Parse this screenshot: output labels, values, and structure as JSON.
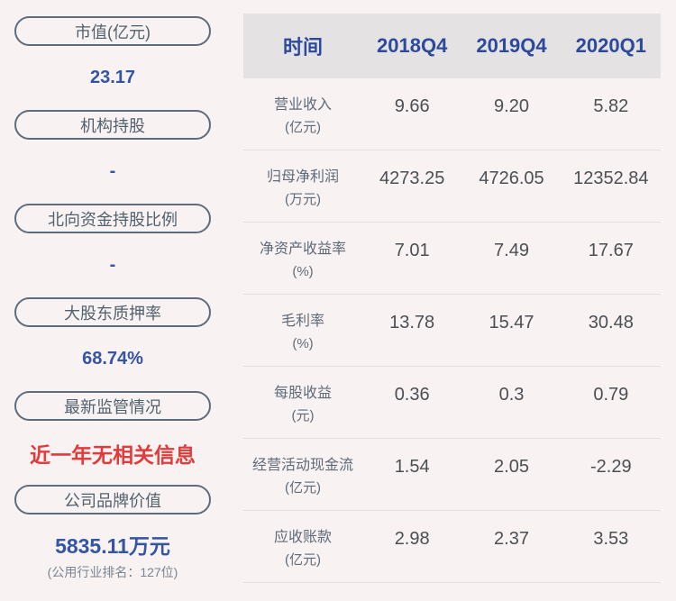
{
  "colors": {
    "page_background": "#f9f2f2",
    "accent_blue": "#3454a4",
    "header_navy": "#2c4a9c",
    "alert_red": "#e23b3b",
    "pill_border": "#5c6d7e",
    "header_background": "#e4e2e3"
  },
  "sidebar": {
    "items": [
      {
        "label": "市值(亿元)",
        "value": "23.17"
      },
      {
        "label": "机构持股",
        "value": "-"
      },
      {
        "label": "北向资金持股比例",
        "value": "-"
      },
      {
        "label": "大股东质押率",
        "value": "68.74%"
      },
      {
        "label": "最新监管情况",
        "value": "近一年无相关信息"
      },
      {
        "label": "公司品牌价值",
        "value": "5835.11万元",
        "note": "(公用行业排名：127位)"
      }
    ]
  },
  "table": {
    "header": [
      "时间",
      "2018Q4",
      "2019Q4",
      "2020Q1"
    ],
    "rows": [
      {
        "label": "营业收入",
        "unit": "(亿元)",
        "values": [
          "9.66",
          "9.20",
          "5.82"
        ]
      },
      {
        "label": "归母净利润",
        "unit": "(万元)",
        "values": [
          "4273.25",
          "4726.05",
          "12352.84"
        ]
      },
      {
        "label": "净资产收益率",
        "unit": "(%)",
        "values": [
          "7.01",
          "7.49",
          "17.67"
        ]
      },
      {
        "label": "毛利率",
        "unit": "(%)",
        "values": [
          "13.78",
          "15.47",
          "30.48"
        ]
      },
      {
        "label": "每股收益",
        "unit": "(元)",
        "values": [
          "0.36",
          "0.3",
          "0.79"
        ]
      },
      {
        "label": "经营活动现金流",
        "unit": "(亿元)",
        "values": [
          "1.54",
          "2.05",
          "-2.29"
        ]
      },
      {
        "label": "应收账款",
        "unit": "(亿元)",
        "values": [
          "2.98",
          "2.37",
          "3.53"
        ]
      }
    ]
  },
  "chart_data": {
    "type": "table",
    "title": "公司财务数据概览",
    "columns": [
      "时间",
      "2018Q4",
      "2019Q4",
      "2020Q1"
    ],
    "rows": [
      [
        "营业收入(亿元)",
        9.66,
        9.2,
        5.82
      ],
      [
        "归母净利润(万元)",
        4273.25,
        4726.05,
        12352.84
      ],
      [
        "净资产收益率(%)",
        7.01,
        7.49,
        17.67
      ],
      [
        "毛利率(%)",
        13.78,
        15.47,
        30.48
      ],
      [
        "每股收益(元)",
        0.36,
        0.3,
        0.79
      ],
      [
        "经营活动现金流(亿元)",
        1.54,
        2.05,
        -2.29
      ],
      [
        "应收账款(亿元)",
        2.98,
        2.37,
        3.53
      ]
    ],
    "side_stats": [
      [
        "市值(亿元)",
        "23.17"
      ],
      [
        "机构持股",
        "-"
      ],
      [
        "北向资金持股比例",
        "-"
      ],
      [
        "大股东质押率",
        "68.74%"
      ],
      [
        "最新监管情况",
        "近一年无相关信息"
      ],
      [
        "公司品牌价值",
        "5835.11万元 (公用行业排名：127位)"
      ]
    ]
  }
}
